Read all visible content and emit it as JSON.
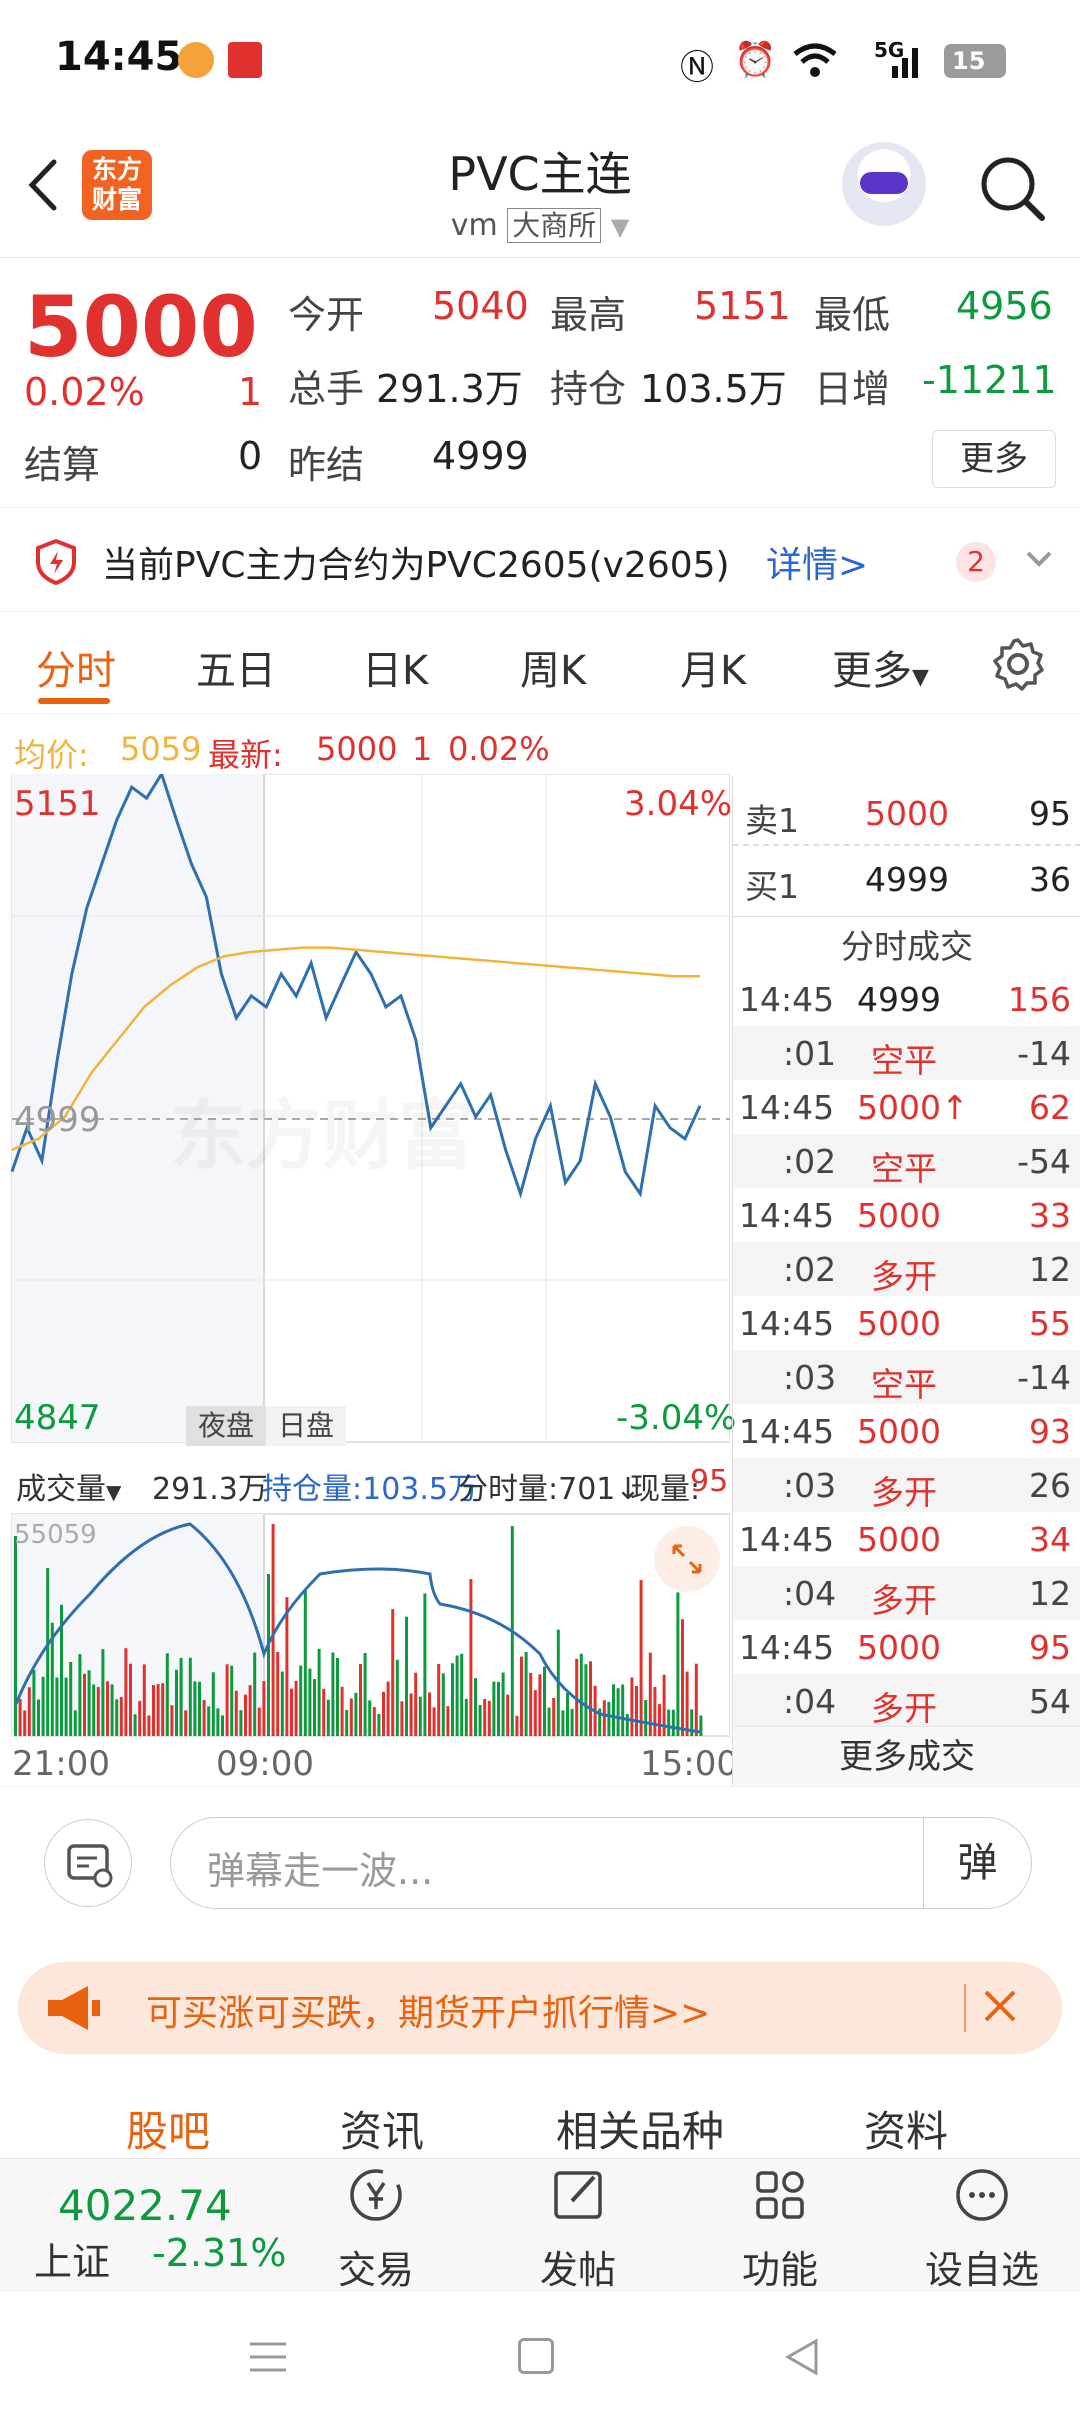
{
  "status_bar": {
    "time": "14:45",
    "battery": "15",
    "network": "5G"
  },
  "header": {
    "title": "PVC主连",
    "subtitle_prefix": "vm",
    "exchange": "大商所",
    "logo_line1": "东方",
    "logo_line2": "财富"
  },
  "quote": {
    "price": "5000",
    "pct": "0.02%",
    "change": "1",
    "settle_label": "结算",
    "settle_value": "0",
    "prev_settle_label": "昨结",
    "prev_settle_value": "4999",
    "open_label": "今开",
    "open_value": "5040",
    "high_label": "最高",
    "high_value": "5151",
    "low_label": "最低",
    "low_value": "4956",
    "volume_label": "总手",
    "volume_value": "291.3万",
    "oi_label": "持仓",
    "oi_value": "103.5万",
    "daily_inc_label": "日增",
    "daily_inc_value": "-11211",
    "more_button": "更多"
  },
  "notice": {
    "text": "当前PVC主力合约为PVC2605(v2605)",
    "link": "详情>",
    "badge": "2"
  },
  "tabs": [
    {
      "label": "分时"
    },
    {
      "label": "五日"
    },
    {
      "label": "日K"
    },
    {
      "label": "周K"
    },
    {
      "label": "月K"
    },
    {
      "label": "更多"
    }
  ],
  "info_line": {
    "avg_label": "均价:",
    "avg_value": "5059",
    "latest_label": "最新:",
    "latest_value": "5000",
    "latest_change": "1",
    "latest_pct": "0.02%"
  },
  "chart": {
    "top_price": "5151",
    "top_pct": "3.04%",
    "mid_price": "4999",
    "bottom_price": "4847",
    "bottom_pct": "-3.04%",
    "night_session": "夜盘",
    "day_session": "日盘",
    "watermark": "东方财富",
    "volume_bar_label": "成交量",
    "volume_total": "291.3万",
    "volume_oi": "持仓量:103.5万",
    "volume_minute": "分时量:701↓",
    "volume_current_label": "现量:",
    "volume_current_value": "95",
    "volume_max": "55059",
    "time_start": "21:00",
    "time_mid": "09:00",
    "time_end": "15:00"
  },
  "chart_data": {
    "type": "line",
    "series": [
      {
        "name": "最新",
        "values": [
          4970,
          4990,
          4975,
          5020,
          5060,
          5090,
          5110,
          5130,
          5145,
          5140,
          5151,
          5130,
          5110,
          5095,
          5060,
          5040,
          5050,
          5045,
          5060,
          5050,
          5065,
          5040,
          5055,
          5070,
          5060,
          5045,
          5050,
          5030,
          4990,
          5000,
          5010,
          4995,
          5005,
          4980,
          4960,
          4985,
          5000,
          4965,
          4975,
          5010,
          4995,
          4970,
          4960,
          5000,
          4990,
          4985,
          5000
        ]
      },
      {
        "name": "均价",
        "values": [
          4980,
          4985,
          4995,
          5015,
          5030,
          5045,
          5055,
          5063,
          5068,
          5070,
          5071,
          5072,
          5072,
          5071,
          5070,
          5069,
          5068,
          5067,
          5066,
          5065,
          5064,
          5063,
          5062,
          5061,
          5060,
          5059,
          5059
        ]
      }
    ],
    "ylim": [
      4847,
      5151
    ],
    "x_ticks": [
      "21:00",
      "09:00",
      "15:00"
    ]
  },
  "order_book": {
    "sell1_label": "卖1",
    "sell1_price": "5000",
    "sell1_vol": "95",
    "buy1_label": "买1",
    "buy1_price": "4999",
    "buy1_vol": "36",
    "trades_title": "分时成交",
    "trades": [
      {
        "time": "14:45",
        "price": "4999",
        "vol": "156",
        "price_color": "#222",
        "vol_color": "#e0312f"
      },
      {
        "time": ":01",
        "price": "空平",
        "vol": "-14",
        "price_color": "#e0312f",
        "vol_color": "#444"
      },
      {
        "time": "14:45",
        "price": "5000↑",
        "vol": "62",
        "price_color": "#e0312f",
        "vol_color": "#e0312f"
      },
      {
        "time": ":02",
        "price": "空平",
        "vol": "-54",
        "price_color": "#e0312f",
        "vol_color": "#444"
      },
      {
        "time": "14:45",
        "price": "5000",
        "vol": "33",
        "price_color": "#e0312f",
        "vol_color": "#e0312f"
      },
      {
        "time": ":02",
        "price": "多开",
        "vol": "12",
        "price_color": "#e0312f",
        "vol_color": "#444"
      },
      {
        "time": "14:45",
        "price": "5000",
        "vol": "55",
        "price_color": "#e0312f",
        "vol_color": "#e0312f"
      },
      {
        "time": ":03",
        "price": "空平",
        "vol": "-14",
        "price_color": "#e0312f",
        "vol_color": "#444"
      },
      {
        "time": "14:45",
        "price": "5000",
        "vol": "93",
        "price_color": "#e0312f",
        "vol_color": "#e0312f"
      },
      {
        "time": ":03",
        "price": "多开",
        "vol": "26",
        "price_color": "#e0312f",
        "vol_color": "#444"
      },
      {
        "time": "14:45",
        "price": "5000",
        "vol": "34",
        "price_color": "#e0312f",
        "vol_color": "#e0312f"
      },
      {
        "time": ":04",
        "price": "多开",
        "vol": "12",
        "price_color": "#e0312f",
        "vol_color": "#444"
      },
      {
        "time": "14:45",
        "price": "5000",
        "vol": "95",
        "price_color": "#e0312f",
        "vol_color": "#e0312f"
      },
      {
        "time": ":04",
        "price": "多开",
        "vol": "54",
        "price_color": "#e0312f",
        "vol_color": "#444"
      }
    ],
    "more_trades": "更多成交"
  },
  "comment_bar": {
    "placeholder": "弹幕走一波...",
    "send_label": "弹"
  },
  "ad_banner": {
    "text": "可买涨可买跌，期货开户抓行情>>"
  },
  "sub_tabs": [
    {
      "label": "股吧"
    },
    {
      "label": "资讯"
    },
    {
      "label": "相关品种"
    },
    {
      "label": "资料"
    }
  ],
  "bottom_nav": {
    "index_value": "4022.74",
    "index_name": "上证",
    "index_pct": "-2.31%",
    "trade": "交易",
    "post": "发帖",
    "functions": "功能",
    "watchlist": "设自选"
  },
  "colors": {
    "accent": "#e8620f",
    "up": "#e0312f",
    "down": "#0c9a3c",
    "price_line": "#2f6fb0",
    "avg_line": "#f0b43c"
  }
}
